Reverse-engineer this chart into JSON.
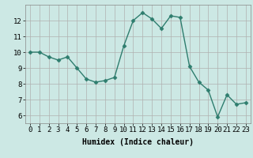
{
  "x": [
    0,
    1,
    2,
    3,
    4,
    5,
    6,
    7,
    8,
    9,
    10,
    11,
    12,
    13,
    14,
    15,
    16,
    17,
    18,
    19,
    20,
    21,
    22,
    23
  ],
  "y": [
    10.0,
    10.0,
    9.7,
    9.5,
    9.7,
    9.0,
    8.3,
    8.1,
    8.2,
    8.4,
    10.4,
    12.0,
    12.5,
    12.1,
    11.5,
    12.3,
    12.2,
    9.1,
    8.1,
    7.6,
    5.9,
    7.3,
    6.7,
    6.8
  ],
  "line_color": "#2e7d6e",
  "marker": "D",
  "marker_size": 2.5,
  "linewidth": 1.0,
  "xlabel": "Humidex (Indice chaleur)",
  "xlabel_fontsize": 7,
  "ylabel_ticks": [
    6,
    7,
    8,
    9,
    10,
    11,
    12
  ],
  "ylim": [
    5.5,
    13.0
  ],
  "xlim": [
    -0.5,
    23.5
  ],
  "bg_color": "#cce8e4",
  "grid_color": "#b0b0b0",
  "tick_fontsize": 6.5,
  "font_family": "monospace"
}
